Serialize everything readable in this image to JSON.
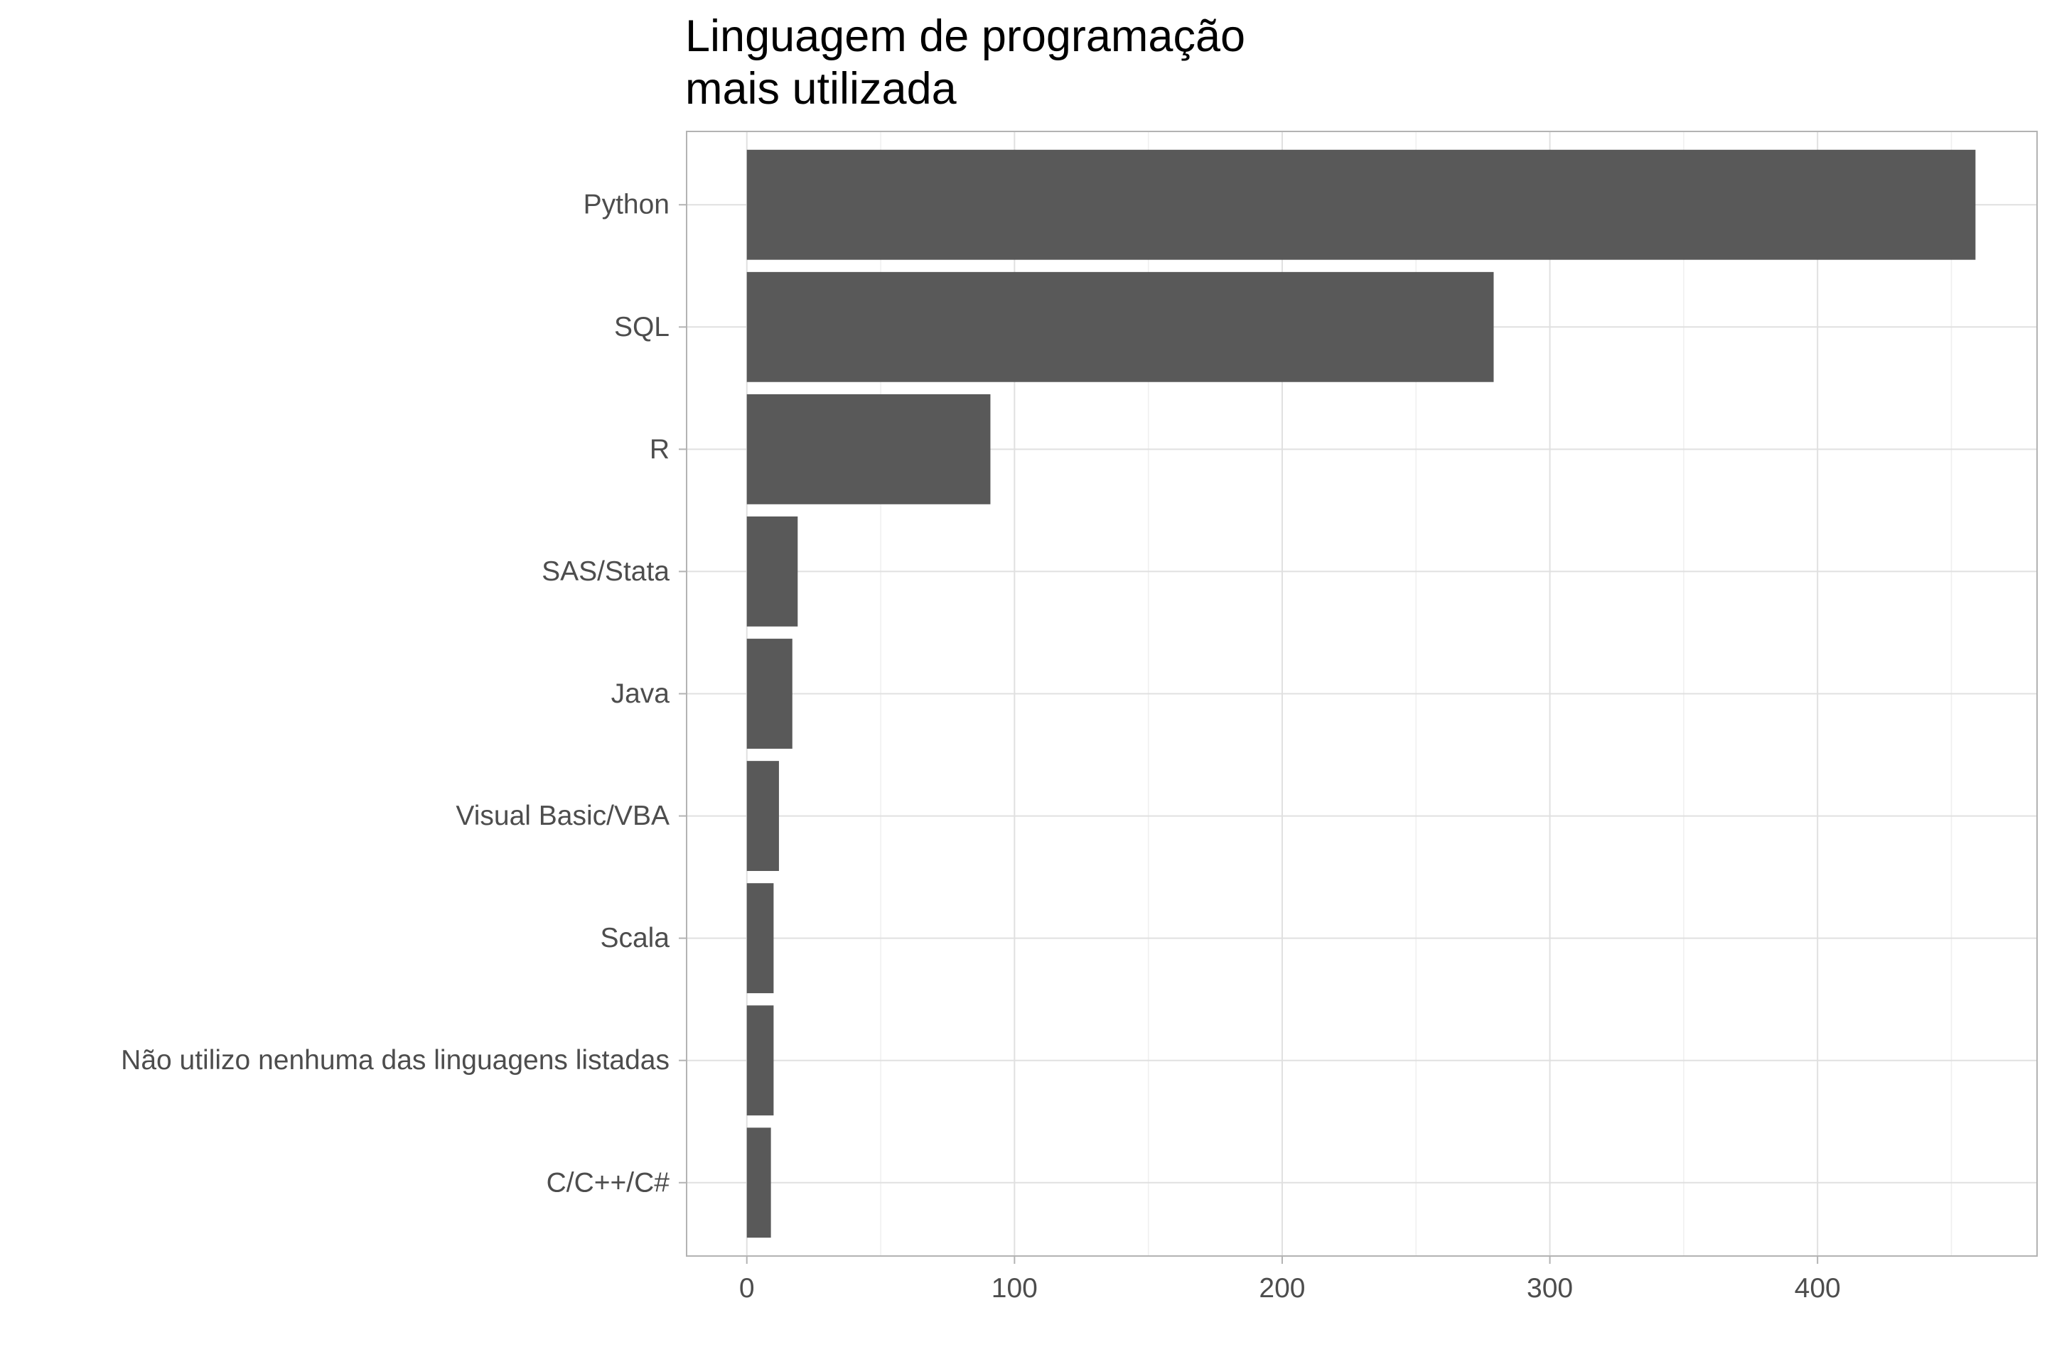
{
  "chart_data": {
    "type": "bar",
    "orientation": "horizontal",
    "title_lines": [
      "Linguagem de programação",
      "mais utilizada"
    ],
    "xlabel": "",
    "ylabel": "",
    "categories": [
      "Python",
      "SQL",
      "R",
      "SAS/Stata",
      "Java",
      "Visual Basic/VBA",
      "Scala",
      "Não utilizo nenhuma das linguagens listadas",
      "C/C++/C#"
    ],
    "values": [
      459,
      279,
      91,
      19,
      17,
      12,
      10,
      10,
      9
    ],
    "xlim": [
      -22.5,
      482
    ],
    "xticks": [
      0,
      100,
      200,
      300,
      400
    ],
    "grid": true,
    "legend": "none",
    "colors": {
      "bar": "#595959",
      "panel_border": "#b3b3b3",
      "grid_major": "#e0e0e0",
      "grid_minor": "#efefef",
      "tick_label": "#4d4d4d",
      "title": "#000000",
      "background": "#ffffff"
    }
  }
}
